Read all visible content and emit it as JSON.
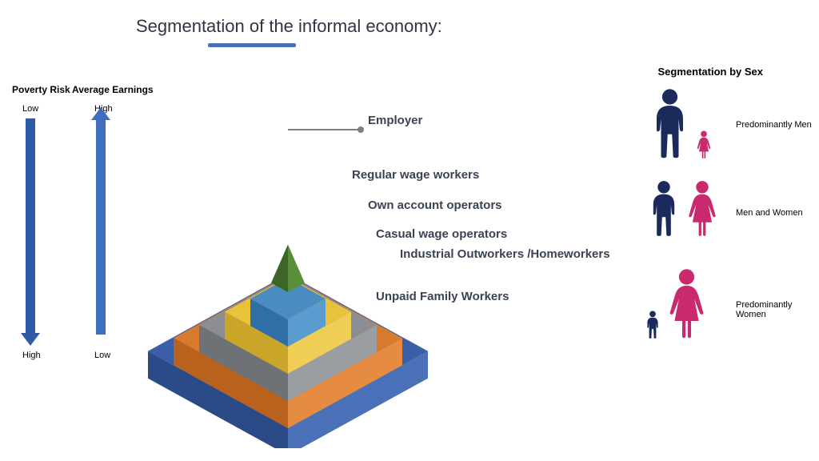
{
  "title": "Segmentation of the informal economy:",
  "underline_color": "#4a6fbf",
  "scales": {
    "poverty": {
      "label": "Poverty Risk",
      "top": "Low",
      "bottom": "High",
      "color": "#2f5aa8"
    },
    "earnings": {
      "label": "Average Earnings",
      "top": "High",
      "bottom": "Low",
      "color": "#3e6ec0"
    }
  },
  "pyramid": {
    "levels": [
      {
        "label": "Employer",
        "top_color": "#4a7a2f",
        "left_color": "#3d6626",
        "right_color": "#5a8f3a"
      },
      {
        "label": "Regular wage workers",
        "top_color": "#4a8cc2",
        "left_color": "#2f6fa5",
        "right_color": "#5a9ccf"
      },
      {
        "label": "Own account operators",
        "top_color": "#e8c23a",
        "left_color": "#c9a62a",
        "right_color": "#f0ce55"
      },
      {
        "label": "Casual wage operators",
        "top_color": "#8a8d92",
        "left_color": "#6e7176",
        "right_color": "#9a9da2"
      },
      {
        "label": "Industrial Outworkers /Homeworkers",
        "top_color": "#d87a2e",
        "left_color": "#b8621e",
        "right_color": "#e68c42"
      },
      {
        "label": "Unpaid Family Workers",
        "top_color": "#3a5fa8",
        "left_color": "#2a4a88",
        "right_color": "#4a70b8"
      }
    ],
    "leader_color": "#7a7f88",
    "label_color": "#3a4354"
  },
  "segmentation_by_sex": {
    "title": "Segmentation by Sex",
    "man_color": "#1a2a5a",
    "woman_color": "#c92a6e",
    "groups": [
      {
        "label": "Predominantly Men",
        "man_scale": 1.0,
        "woman_scale": 0.4
      },
      {
        "label": "Men and Women",
        "man_scale": 0.8,
        "woman_scale": 0.8
      },
      {
        "label": "Predominantly Women",
        "man_scale": 0.4,
        "woman_scale": 1.0
      }
    ]
  }
}
